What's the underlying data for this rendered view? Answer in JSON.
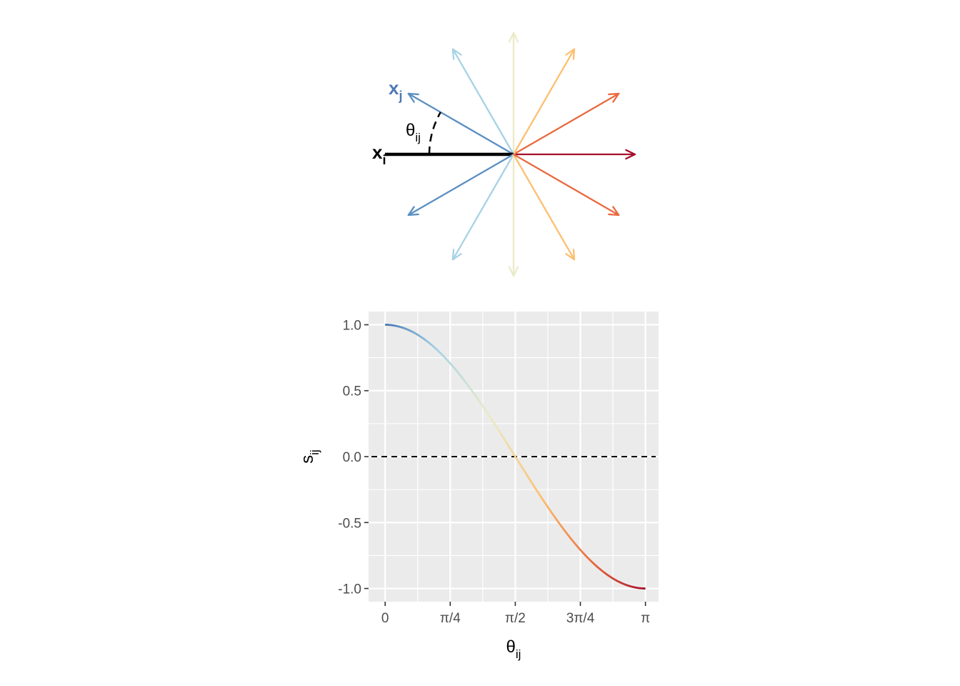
{
  "diagram": {
    "xi_label": {
      "main": "x",
      "sub": "i",
      "color": "#000000"
    },
    "xj_label": {
      "main": "x",
      "sub": "j",
      "color": "#4e79b5"
    },
    "angle_label": {
      "main": "θ",
      "sub": "ij"
    },
    "arrow_angles_deg": [
      0,
      30,
      60,
      90,
      120,
      150,
      180,
      210,
      240,
      270,
      300,
      330
    ],
    "arrow_colors": {
      "0": "#a50f2b",
      "30": "#e8693f",
      "330": "#e8693f",
      "60": "#fdbf6f",
      "300": "#fdbf6f",
      "90": "#eaebc8",
      "270": "#eaebc8",
      "120": "#a6d2e4",
      "240": "#a6d2e4",
      "150": "#5b8fc2",
      "210": "#5b8fc2",
      "180": "#000000"
    }
  },
  "chart_data": {
    "type": "line",
    "function": "cos",
    "x": [
      0,
      0.19635,
      0.3927,
      0.58905,
      0.7854,
      0.98175,
      1.1781,
      1.37445,
      1.5708,
      1.76715,
      1.9635,
      2.15985,
      2.35619,
      2.55254,
      2.74889,
      2.94524,
      3.14159
    ],
    "y": [
      1.0,
      0.981,
      0.924,
      0.831,
      0.707,
      0.556,
      0.383,
      0.195,
      0.0,
      -0.195,
      -0.383,
      -0.556,
      -0.707,
      -0.831,
      -0.924,
      -0.981,
      -1.0
    ],
    "xlabel": {
      "main": "θ",
      "sub": "ij"
    },
    "ylabel": {
      "main": "s",
      "sub": "ij"
    },
    "xlim": [
      -0.2,
      3.3
    ],
    "ylim": [
      -1.1,
      1.1
    ],
    "x_ticks": [
      {
        "value": 0,
        "label": "0"
      },
      {
        "value": 0.7854,
        "label": "π/4"
      },
      {
        "value": 1.5708,
        "label": "π/2"
      },
      {
        "value": 2.35619,
        "label": "3π/4"
      },
      {
        "value": 3.14159,
        "label": "π"
      }
    ],
    "y_ticks": [
      {
        "value": 1.0,
        "label": "1.0"
      },
      {
        "value": 0.5,
        "label": "0.5"
      },
      {
        "value": 0.0,
        "label": "0.0"
      },
      {
        "value": -0.5,
        "label": "-0.5"
      },
      {
        "value": -1.0,
        "label": "-1.0"
      }
    ],
    "reference_line": {
      "y": 0,
      "style": "dashed",
      "color": "#000000"
    },
    "panel_background": "#ebebeb",
    "grid": true,
    "color_gradient": [
      "#4575b4",
      "#a6d2e4",
      "#eaebc8",
      "#fdbf6f",
      "#e8693f",
      "#a50f2b"
    ]
  }
}
